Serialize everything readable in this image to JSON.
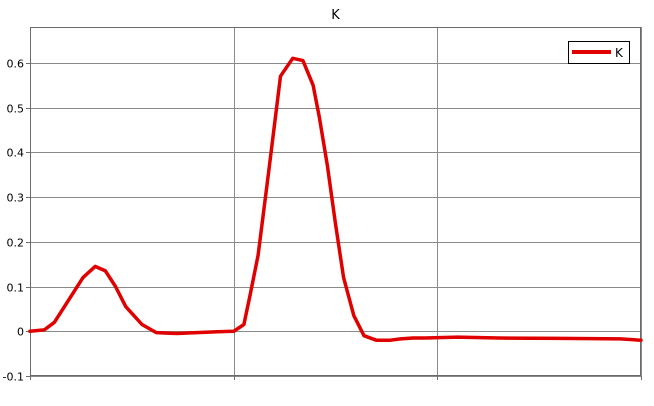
{
  "chart_data": {
    "type": "line",
    "title": "K",
    "xlabel": "",
    "ylabel": "",
    "ylim": [
      -0.1,
      0.68
    ],
    "xlim": [
      0,
      3
    ],
    "y_ticks": [
      -0.1,
      0,
      0.1,
      0.2,
      0.3,
      0.4,
      0.5,
      0.6
    ],
    "y_tick_labels": [
      "-0.1",
      "0",
      "0.1",
      "0.2",
      "0.3",
      "0.4",
      "0.5",
      "0.6"
    ],
    "x_ticks": [
      0,
      1,
      2,
      3
    ],
    "x_tick_labels": [
      "",
      "",
      "",
      ""
    ],
    "grid": true,
    "legend_position": "top-right",
    "series": [
      {
        "name": "K",
        "color": "#e00000",
        "x": [
          0,
          0.07,
          0.12,
          0.19,
          0.26,
          0.32,
          0.37,
          0.42,
          0.47,
          0.55,
          0.62,
          0.72,
          0.82,
          0.92,
          1.0,
          1.05,
          1.08,
          1.12,
          1.17,
          1.23,
          1.29,
          1.34,
          1.39,
          1.42,
          1.46,
          1.5,
          1.54,
          1.59,
          1.64,
          1.7,
          1.77,
          1.82,
          1.88,
          1.94,
          2.1,
          2.3,
          2.6,
          2.9,
          3.0
        ],
        "y": [
          0.0,
          0.003,
          0.02,
          0.07,
          0.12,
          0.145,
          0.135,
          0.1,
          0.055,
          0.015,
          -0.003,
          -0.005,
          -0.003,
          -0.001,
          0.0,
          0.015,
          0.08,
          0.17,
          0.35,
          0.57,
          0.61,
          0.605,
          0.55,
          0.48,
          0.37,
          0.24,
          0.12,
          0.035,
          -0.01,
          -0.02,
          -0.02,
          -0.017,
          -0.015,
          -0.015,
          -0.013,
          -0.015,
          -0.016,
          -0.017,
          -0.02
        ]
      }
    ]
  }
}
